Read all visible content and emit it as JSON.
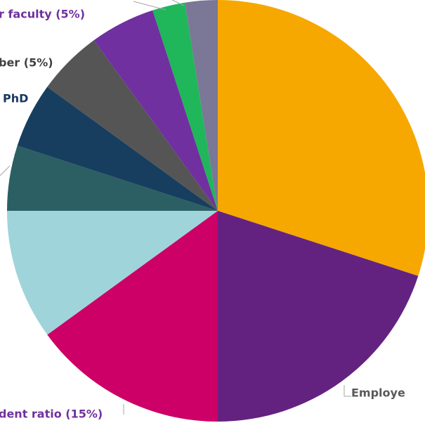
{
  "chart_data": {
    "type": "pie",
    "categories": [
      null,
      "Employe",
      "dent ratio (15%)",
      null,
      null,
      "PhD",
      "ber (5%)",
      "r faculty (5%)",
      null,
      null
    ],
    "values": [
      30,
      20,
      15,
      10,
      5,
      5,
      5,
      5,
      2.5,
      2.5
    ],
    "colors": [
      "#f6a800",
      "#642280",
      "#cc0066",
      "#9fd4da",
      "#2b5f63",
      "#173e5e",
      "#555555",
      "#7030a0",
      "#1fb75a",
      "#7b7796"
    ]
  }
}
